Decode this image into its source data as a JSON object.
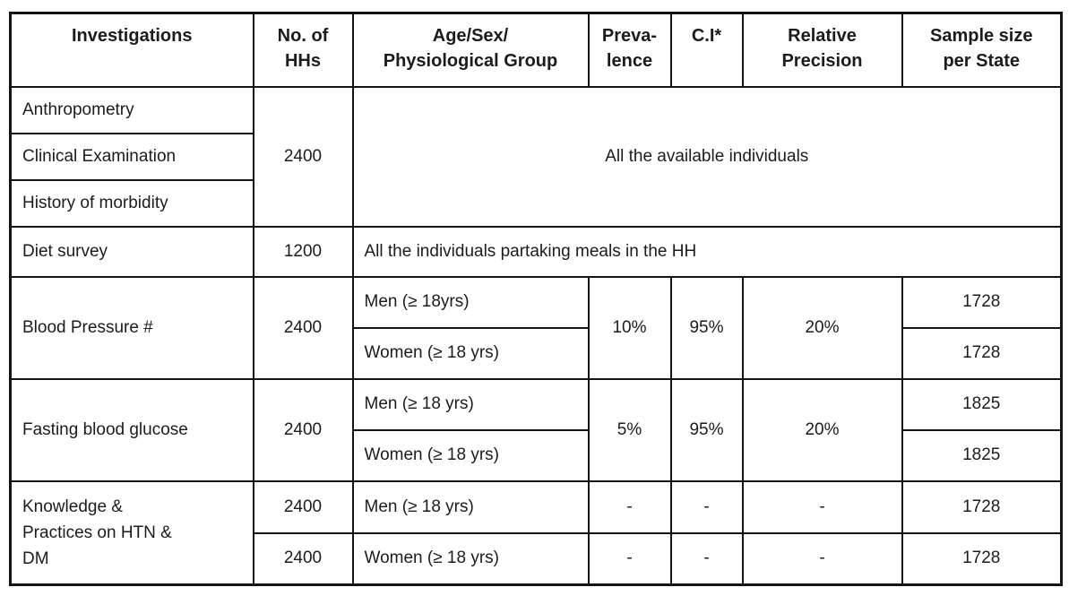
{
  "page": {
    "background_color": "#ffffff",
    "border_color": "#141414",
    "text_color": "#1c1c1c"
  },
  "table": {
    "headers": [
      {
        "line1": "Investigations"
      },
      {
        "line1": "No. of",
        "line2": "HHs"
      },
      {
        "line1": "Age/Sex/",
        "line2": "Physiological Group"
      },
      {
        "line1": "Preva-",
        "line2": "lence"
      },
      {
        "line1": "C.I*"
      },
      {
        "line1": "Relative",
        "line2": "Precision"
      },
      {
        "line1": "Sample size",
        "line2": "per State"
      }
    ],
    "sections": [
      {
        "investigations": [
          "Anthropometry",
          "Clinical Examination",
          "History of morbidity"
        ],
        "hhs": "2400",
        "note": "All the available individuals"
      },
      {
        "investigation": "Diet survey",
        "hhs": "1200",
        "note": "All the individuals partaking meals in the HH"
      },
      {
        "investigation": "Blood Pressure #",
        "hhs": "2400",
        "prevalence": "10%",
        "ci": "95%",
        "relative_precision": "20%",
        "rows": [
          {
            "group": "Men (≥ 18yrs)",
            "sample": "1728"
          },
          {
            "group": "Women (≥ 18 yrs)",
            "sample": "1728"
          }
        ]
      },
      {
        "investigation": "Fasting blood glucose",
        "hhs": "2400",
        "prevalence": "5%",
        "ci": "95%",
        "relative_precision": "20%",
        "rows": [
          {
            "group": "Men (≥ 18 yrs)",
            "sample": "1825"
          },
          {
            "group": "Women (≥ 18 yrs)",
            "sample": "1825"
          }
        ]
      },
      {
        "investigation_lines": [
          "Knowledge &",
          "Practices on HTN &",
          "DM"
        ],
        "rows": [
          {
            "hhs": "2400",
            "group": "Men (≥ 18 yrs)",
            "prevalence": "-",
            "ci": "-",
            "relative_precision": "-",
            "sample": "1728"
          },
          {
            "hhs": "2400",
            "group": "Women (≥ 18 yrs)",
            "prevalence": "-",
            "ci": "-",
            "relative_precision": "-",
            "sample": "1728"
          }
        ]
      }
    ]
  }
}
